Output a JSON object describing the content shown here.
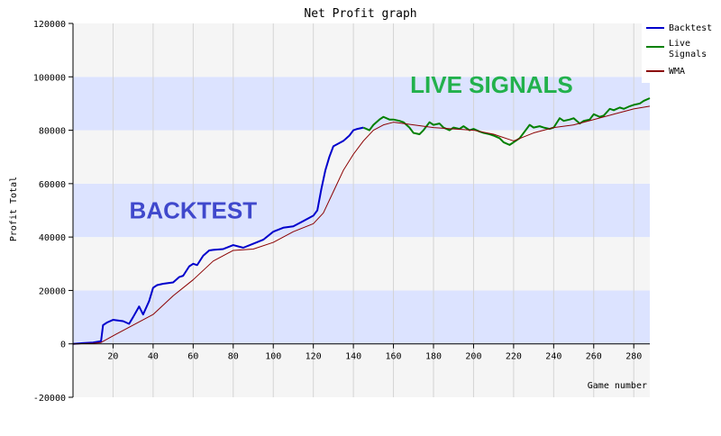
{
  "chart_data": {
    "type": "line",
    "title": "Net Profit graph",
    "xlabel": "Game number",
    "ylabel": "Profit Total",
    "xlim": [
      0,
      288
    ],
    "ylim": [
      -20000,
      120000
    ],
    "x_ticks": [
      20,
      40,
      60,
      80,
      100,
      120,
      140,
      160,
      180,
      200,
      220,
      240,
      260,
      280
    ],
    "y_ticks": [
      -20000,
      0,
      20000,
      40000,
      60000,
      80000,
      100000,
      120000
    ],
    "grid": true,
    "legend_position": "top-right",
    "colors": {
      "backtest": "#0000cc",
      "live": "#008000",
      "wma": "#8b0000",
      "band_blue": "#dce3ff",
      "band_grey": "#f5f5f5",
      "annotation_backtest": "#3f48cc",
      "annotation_live": "#22b14c"
    },
    "series": [
      {
        "name": "Backtest",
        "x": [
          0,
          5,
          10,
          14,
          15,
          17,
          20,
          25,
          28,
          30,
          33,
          35,
          38,
          40,
          42,
          45,
          50,
          53,
          55,
          58,
          60,
          62,
          65,
          68,
          70,
          75,
          80,
          85,
          90,
          95,
          100,
          105,
          110,
          115,
          120,
          122,
          124,
          126,
          128,
          130,
          135,
          138,
          140,
          142,
          145
        ],
        "y": [
          0,
          300,
          500,
          1000,
          7000,
          8000,
          9000,
          8500,
          7500,
          10000,
          14000,
          11000,
          16000,
          21000,
          22000,
          22500,
          23000,
          25000,
          25500,
          29000,
          30000,
          29500,
          33000,
          35000,
          35200,
          35500,
          37000,
          36000,
          37500,
          39000,
          42000,
          43500,
          44000,
          46000,
          48000,
          50000,
          58000,
          65000,
          70000,
          74000,
          76000,
          78000,
          80000,
          80500,
          81000
        ]
      },
      {
        "name": "Live\nSignals",
        "x": [
          145,
          148,
          150,
          153,
          155,
          158,
          160,
          163,
          165,
          168,
          170,
          173,
          175,
          178,
          180,
          183,
          185,
          188,
          190,
          193,
          195,
          198,
          200,
          203,
          205,
          208,
          210,
          213,
          215,
          218,
          220,
          223,
          225,
          228,
          230,
          233,
          235,
          238,
          240,
          243,
          245,
          248,
          250,
          253,
          255,
          258,
          260,
          263,
          265,
          268,
          270,
          273,
          275,
          278,
          280,
          283,
          285,
          288
        ],
        "y": [
          81000,
          80000,
          82000,
          84000,
          85000,
          84000,
          84000,
          83500,
          83000,
          81000,
          79000,
          78500,
          80000,
          83000,
          82000,
          82500,
          81000,
          80000,
          81000,
          80500,
          81500,
          80000,
          80500,
          79500,
          79000,
          78500,
          78000,
          77000,
          75500,
          74500,
          75500,
          77000,
          79000,
          82000,
          81000,
          81500,
          81000,
          80500,
          81000,
          84500,
          83500,
          84000,
          84500,
          82500,
          83500,
          84000,
          86000,
          85000,
          85500,
          88000,
          87500,
          88500,
          88000,
          89000,
          89500,
          90000,
          91000,
          92000
        ]
      },
      {
        "name": "WMA",
        "x": [
          0,
          10,
          14,
          20,
          30,
          40,
          50,
          60,
          70,
          80,
          90,
          100,
          110,
          120,
          125,
          130,
          135,
          140,
          145,
          150,
          155,
          160,
          170,
          180,
          190,
          200,
          210,
          220,
          230,
          240,
          250,
          260,
          270,
          280,
          288
        ],
        "y": [
          0,
          200,
          500,
          3000,
          7000,
          11000,
          18000,
          24000,
          31000,
          35000,
          35500,
          38000,
          42000,
          45000,
          49000,
          57000,
          65000,
          71000,
          76000,
          80000,
          82000,
          83000,
          82000,
          81000,
          80500,
          80000,
          78500,
          76000,
          79000,
          81000,
          82000,
          84000,
          86000,
          88000,
          89000
        ]
      }
    ],
    "annotations": [
      {
        "text": "BACKTEST",
        "x": 60,
        "y": 50000
      },
      {
        "text": "LIVE SIGNALS",
        "x": 209,
        "y": 97000
      }
    ]
  }
}
